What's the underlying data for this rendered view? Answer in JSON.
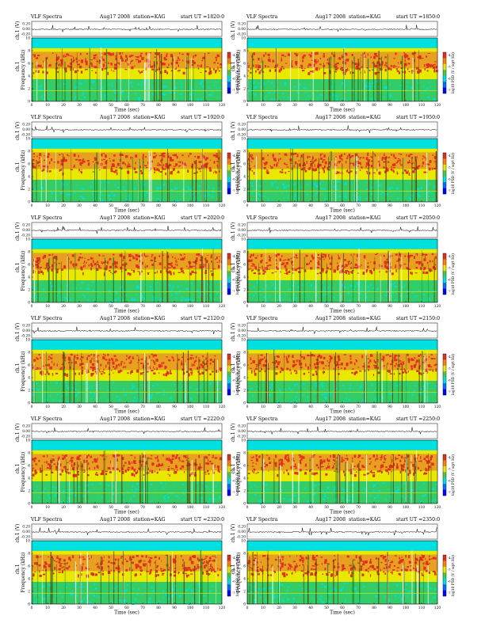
{
  "page": {
    "background": "#ffffff"
  },
  "chart_data": [
    {
      "type": "heatmap",
      "panel_type": "VLF Spectra",
      "date": "Aug17 2008",
      "station": "station=KAG",
      "start_ut": "start  UT  =1820:0",
      "ch_label": "ch.1 (V)",
      "ch_ticks": [
        "0.20",
        "0.00",
        "-0.20"
      ],
      "ylabel": "Frequency  (kHz)",
      "ylabel_prefix": "ch.1",
      "xlabel": "Time  (sec)",
      "xlim": [
        0,
        120
      ],
      "ylim": [
        0,
        10
      ],
      "xticks": [
        "0",
        "10",
        "20",
        "30",
        "40",
        "50",
        "60",
        "70",
        "80",
        "90",
        "100",
        "110",
        "120"
      ],
      "yticks": [
        "0",
        "2",
        "4",
        "6",
        "8",
        "10"
      ],
      "colorbar_label": "log10 PSD (V / sqrt Hz)",
      "colorbar_ticks": [
        "-4",
        "-5",
        "-6",
        "-7"
      ],
      "colors": {
        "cold": "#0000ff",
        "cyan": "#00e0e0",
        "green": "#44cc44",
        "yellow": "#e8e800",
        "red": "#e03020"
      }
    },
    {
      "type": "heatmap",
      "panel_type": "VLF Spectra",
      "date": "Aug17 2008",
      "station": "station=KAG",
      "start_ut": "start  UT  =1850:0",
      "ch_label": "ch.1 (V)",
      "ch_ticks": [
        "0.20",
        "0.00",
        "-0.20"
      ],
      "ylabel": "Frequency  (kHz)",
      "ylabel_prefix": "ch.1",
      "xlabel": "Time  (sec)",
      "xlim": [
        0,
        120
      ],
      "ylim": [
        0,
        10
      ],
      "xticks": [
        "0",
        "10",
        "20",
        "30",
        "40",
        "50",
        "60",
        "70",
        "80",
        "90",
        "100",
        "110",
        "120"
      ],
      "yticks": [
        "0",
        "2",
        "4",
        "6",
        "8",
        "10"
      ],
      "colorbar_label": "log10 PSD (V / sqrt Hz)",
      "colorbar_ticks": [
        "-4",
        "-5",
        "-6",
        "-7"
      ],
      "colors": {
        "cold": "#0000ff",
        "cyan": "#00e0e0",
        "green": "#44cc44",
        "yellow": "#e8e800",
        "red": "#e03020"
      }
    },
    {
      "type": "heatmap",
      "panel_type": "VLF Spectra",
      "date": "Aug17 2008",
      "station": "station=KAG",
      "start_ut": "start  UT  =1920:0",
      "ch_label": "ch.1 (V)",
      "ch_ticks": [
        "0.20",
        "0.00",
        "-0.20"
      ],
      "ylabel": "Frequency  (kHz)",
      "ylabel_prefix": "ch.1",
      "xlabel": "Time  (sec)",
      "xlim": [
        0,
        120
      ],
      "ylim": [
        0,
        10
      ],
      "xticks": [
        "0",
        "10",
        "20",
        "30",
        "40",
        "50",
        "60",
        "70",
        "80",
        "90",
        "100",
        "110",
        "120"
      ],
      "yticks": [
        "0",
        "2",
        "4",
        "6",
        "8",
        "10"
      ],
      "colorbar_label": "log10 PSD (V / sqrt Hz)",
      "colorbar_ticks": [
        "-4",
        "-5",
        "-6",
        "-7"
      ],
      "colors": {
        "cold": "#0000ff",
        "cyan": "#00e0e0",
        "green": "#44cc44",
        "yellow": "#e8e800",
        "red": "#e03020"
      }
    },
    {
      "type": "heatmap",
      "panel_type": "VLF Spectra",
      "date": "Aug17 2008",
      "station": "station=KAG",
      "start_ut": "start  UT  =1950:0",
      "ch_label": "ch.1 (V)",
      "ch_ticks": [
        "0.20",
        "0.00",
        "-0.20"
      ],
      "ylabel": "Frequency  (kHz)",
      "ylabel_prefix": "ch.1",
      "xlabel": "Time  (sec)",
      "xlim": [
        0,
        120
      ],
      "ylim": [
        0,
        10
      ],
      "xticks": [
        "0",
        "10",
        "20",
        "30",
        "40",
        "50",
        "60",
        "70",
        "80",
        "90",
        "100",
        "110",
        "120"
      ],
      "yticks": [
        "0",
        "2",
        "4",
        "6",
        "8",
        "10"
      ],
      "colorbar_label": "log10 PSD (V / sqrt Hz)",
      "colorbar_ticks": [
        "-4",
        "-5",
        "-6",
        "-7"
      ],
      "colors": {
        "cold": "#0000ff",
        "cyan": "#00e0e0",
        "green": "#44cc44",
        "yellow": "#e8e800",
        "red": "#e03020"
      }
    },
    {
      "type": "heatmap",
      "panel_type": "VLF Spectra",
      "date": "Aug17 2008",
      "station": "station=KAG",
      "start_ut": "start  UT  =2020:0",
      "ch_label": "ch.1 (V)",
      "ch_ticks": [
        "0.20",
        "0.00",
        "-0.20"
      ],
      "ylabel": "Frequency  (kHz)",
      "ylabel_prefix": "ch.1",
      "xlabel": "Time  (sec)",
      "xlim": [
        0,
        120
      ],
      "ylim": [
        0,
        10
      ],
      "xticks": [
        "0",
        "10",
        "20",
        "30",
        "40",
        "50",
        "60",
        "70",
        "80",
        "90",
        "100",
        "110",
        "120"
      ],
      "yticks": [
        "0",
        "2",
        "4",
        "6",
        "8",
        "10"
      ],
      "colorbar_label": "log10 PSD (V / sqrt Hz)",
      "colorbar_ticks": [
        "-4",
        "-5",
        "-6",
        "-7"
      ],
      "colors": {
        "cold": "#0000ff",
        "cyan": "#00e0e0",
        "green": "#44cc44",
        "yellow": "#e8e800",
        "red": "#e03020"
      }
    },
    {
      "type": "heatmap",
      "panel_type": "VLF Spectra",
      "date": "Aug17 2008",
      "station": "station=KAG",
      "start_ut": "start  UT  =2050:0",
      "ch_label": "ch.1 (V)",
      "ch_ticks": [
        "0.20",
        "0.00",
        "-0.20"
      ],
      "ylabel": "Frequency  (kHz)",
      "ylabel_prefix": "ch.1",
      "xlabel": "Time  (sec)",
      "xlim": [
        0,
        120
      ],
      "ylim": [
        0,
        10
      ],
      "xticks": [
        "0",
        "10",
        "20",
        "30",
        "40",
        "50",
        "60",
        "70",
        "80",
        "90",
        "100",
        "110",
        "120"
      ],
      "yticks": [
        "0",
        "2",
        "4",
        "6",
        "8",
        "10"
      ],
      "colorbar_label": "log10 PSD (V / sqrt Hz)",
      "colorbar_ticks": [
        "-4",
        "-5",
        "-6",
        "-7"
      ],
      "colors": {
        "cold": "#0000ff",
        "cyan": "#00e0e0",
        "green": "#44cc44",
        "yellow": "#e8e800",
        "red": "#e03020"
      }
    },
    {
      "type": "heatmap",
      "panel_type": "VLF Spectra",
      "date": "Aug17 2008",
      "station": "station=KAG",
      "start_ut": "start  UT  =2120:0",
      "ch_label": "ch.1 (V)",
      "ch_ticks": [
        "0.20",
        "0.00",
        "-0.20"
      ],
      "ylabel": "Frequency  (kHz)",
      "ylabel_prefix": "ch.1",
      "xlabel": "Time  (sec)",
      "xlim": [
        0,
        120
      ],
      "ylim": [
        0,
        10
      ],
      "xticks": [
        "0",
        "10",
        "20",
        "30",
        "40",
        "50",
        "60",
        "70",
        "80",
        "90",
        "100",
        "110",
        "120"
      ],
      "yticks": [
        "0",
        "2",
        "4",
        "6",
        "8",
        "10"
      ],
      "colorbar_label": "log10 PSD (V / sqrt Hz)",
      "colorbar_ticks": [
        "-4",
        "-5",
        "-6",
        "-7"
      ],
      "colors": {
        "cold": "#0000ff",
        "cyan": "#00e0e0",
        "green": "#44cc44",
        "yellow": "#e8e800",
        "red": "#e03020"
      }
    },
    {
      "type": "heatmap",
      "panel_type": "VLF Spectra",
      "date": "Aug17 2008",
      "station": "station=KAG",
      "start_ut": "start  UT  =2150:0",
      "ch_label": "ch.1 (V)",
      "ch_ticks": [
        "0.20",
        "0.00",
        "-0.20"
      ],
      "ylabel": "Frequency  (kHz)",
      "ylabel_prefix": "ch.1",
      "xlabel": "Time  (sec)",
      "xlim": [
        0,
        120
      ],
      "ylim": [
        0,
        10
      ],
      "xticks": [
        "0",
        "10",
        "20",
        "30",
        "40",
        "50",
        "60",
        "70",
        "80",
        "90",
        "100",
        "110",
        "120"
      ],
      "yticks": [
        "0",
        "2",
        "4",
        "6",
        "8",
        "10"
      ],
      "colorbar_label": "log10 PSD (V / sqrt Hz)",
      "colorbar_ticks": [
        "-4",
        "-5",
        "-6",
        "-7"
      ],
      "colors": {
        "cold": "#0000ff",
        "cyan": "#00e0e0",
        "green": "#44cc44",
        "yellow": "#e8e800",
        "red": "#e03020"
      }
    },
    {
      "type": "heatmap",
      "panel_type": "VLF Spectra",
      "date": "Aug17 2008",
      "station": "station=KAG",
      "start_ut": "start  UT  =2220:0",
      "ch_label": "ch.1 (V)",
      "ch_ticks": [
        "0.20",
        "0.00",
        "-0.20"
      ],
      "ylabel": "Frequency  (kHz)",
      "ylabel_prefix": "ch.1",
      "xlabel": "Time  (sec)",
      "xlim": [
        0,
        120
      ],
      "ylim": [
        0,
        10
      ],
      "xticks": [
        "0",
        "10",
        "20",
        "30",
        "40",
        "50",
        "60",
        "70",
        "80",
        "90",
        "100",
        "110",
        "120"
      ],
      "yticks": [
        "0",
        "2",
        "4",
        "6",
        "8",
        "10"
      ],
      "colorbar_label": "log10 PSD (V / sqrt Hz)",
      "colorbar_ticks": [
        "-4",
        "-5",
        "-6",
        "-7"
      ],
      "colors": {
        "cold": "#0000ff",
        "cyan": "#00e0e0",
        "green": "#44cc44",
        "yellow": "#e8e800",
        "red": "#e03020"
      }
    },
    {
      "type": "heatmap",
      "panel_type": "VLF Spectra",
      "date": "Aug17 2008",
      "station": "station=KAG",
      "start_ut": "start  UT  =2250:0",
      "ch_label": "ch.1 (V)",
      "ch_ticks": [
        "0.20",
        "0.00",
        "-0.20"
      ],
      "ylabel": "Frequency  (kHz)",
      "ylabel_prefix": "ch.1",
      "xlabel": "Time  (sec)",
      "xlim": [
        0,
        120
      ],
      "ylim": [
        0,
        10
      ],
      "xticks": [
        "0",
        "10",
        "20",
        "30",
        "40",
        "50",
        "60",
        "70",
        "80",
        "90",
        "100",
        "110",
        "120"
      ],
      "yticks": [
        "0",
        "2",
        "4",
        "6",
        "8",
        "10"
      ],
      "colorbar_label": "log10 PSD (V / sqrt Hz)",
      "colorbar_ticks": [
        "-4",
        "-5",
        "-6",
        "-7"
      ],
      "colors": {
        "cold": "#0000ff",
        "cyan": "#00e0e0",
        "green": "#44cc44",
        "yellow": "#e8e800",
        "red": "#e03020"
      }
    },
    {
      "type": "heatmap",
      "panel_type": "VLF Spectra",
      "date": "Aug17 2008",
      "station": "station=KAG",
      "start_ut": "start  UT  =2320:0",
      "ch_label": "ch.1 (V)",
      "ch_ticks": [
        "0.20",
        "0.00",
        "-0.20"
      ],
      "ylabel": "Frequency  (kHz)",
      "ylabel_prefix": "ch.1",
      "xlabel": "Time  (sec)",
      "xlim": [
        0,
        120
      ],
      "ylim": [
        0,
        10
      ],
      "xticks": [
        "0",
        "10",
        "20",
        "30",
        "40",
        "50",
        "60",
        "70",
        "80",
        "90",
        "100",
        "110",
        "120"
      ],
      "yticks": [
        "0",
        "2",
        "4",
        "6",
        "8",
        "10"
      ],
      "colorbar_label": "log10 PSD (V / sqrt Hz)",
      "colorbar_ticks": [
        "-4",
        "-5",
        "-6",
        "-7"
      ],
      "colors": {
        "cold": "#0000ff",
        "cyan": "#00e0e0",
        "green": "#44cc44",
        "yellow": "#e8e800",
        "red": "#e03020"
      }
    },
    {
      "type": "heatmap",
      "panel_type": "VLF Spectra",
      "date": "Aug17 2008",
      "station": "station=KAG",
      "start_ut": "start  UT  =2350:0",
      "ch_label": "ch.1 (V)",
      "ch_ticks": [
        "0.20",
        "0.00",
        "-0.20"
      ],
      "ylabel": "Frequency  (kHz)",
      "ylabel_prefix": "ch.1",
      "xlabel": "Time  (sec)",
      "xlim": [
        0,
        120
      ],
      "ylim": [
        0,
        10
      ],
      "xticks": [
        "0",
        "10",
        "20",
        "30",
        "40",
        "50",
        "60",
        "70",
        "80",
        "90",
        "100",
        "110",
        "120"
      ],
      "yticks": [
        "0",
        "2",
        "4",
        "6",
        "8",
        "10"
      ],
      "colorbar_label": "log10 PSD (V / sqrt Hz)",
      "colorbar_ticks": [
        "-4",
        "-5",
        "-6",
        "-7"
      ],
      "colors": {
        "cold": "#0000ff",
        "cyan": "#00e0e0",
        "green": "#44cc44",
        "yellow": "#e8e800",
        "red": "#e03020"
      }
    }
  ]
}
